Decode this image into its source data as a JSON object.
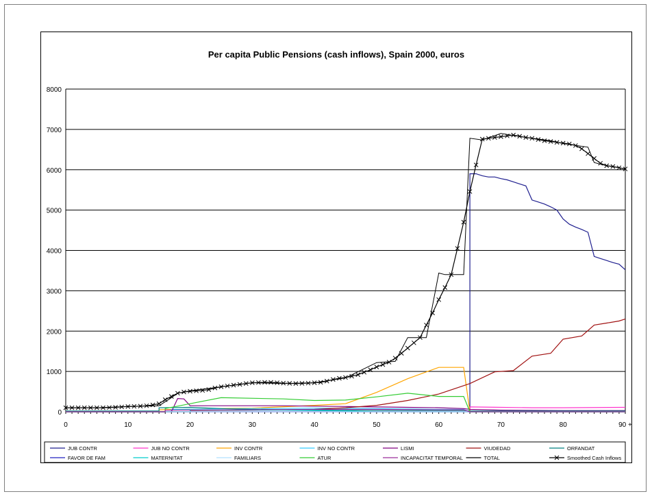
{
  "chart_data": {
    "type": "line",
    "title": "Per capita Public Pensions (cash inflows), Spain 2000, euros",
    "xlabel": "",
    "ylabel": "",
    "ylim": [
      0,
      8000
    ],
    "yticks": [
      0,
      1000,
      2000,
      3000,
      4000,
      5000,
      6000,
      7000,
      8000
    ],
    "xlim": [
      0,
      90
    ],
    "xtick_labels": [
      {
        "x": 0,
        "label": "0"
      },
      {
        "x": 10,
        "label": "10"
      },
      {
        "x": 20,
        "label": "20"
      },
      {
        "x": 30,
        "label": "30"
      },
      {
        "x": 40,
        "label": "40"
      },
      {
        "x": 50,
        "label": "50"
      },
      {
        "x": 60,
        "label": "60"
      },
      {
        "x": 70,
        "label": "70"
      },
      {
        "x": 80,
        "label": "80"
      },
      {
        "x": 90,
        "label": "90 +"
      }
    ],
    "grid": "horizontal",
    "legend_position": "bottom",
    "series": [
      {
        "name": "JUB CONTR",
        "color": "#1f1f8f",
        "step": false,
        "points": [
          [
            0,
            0
          ],
          [
            60,
            0
          ],
          [
            61,
            0
          ],
          [
            63,
            0
          ],
          [
            64,
            0
          ],
          [
            65,
            0
          ],
          [
            65,
            5900
          ],
          [
            66,
            5900
          ],
          [
            67,
            5850
          ],
          [
            68,
            5820
          ],
          [
            69,
            5820
          ],
          [
            70,
            5780
          ],
          [
            71,
            5750
          ],
          [
            72,
            5700
          ],
          [
            73,
            5650
          ],
          [
            74,
            5600
          ],
          [
            75,
            5250
          ],
          [
            76,
            5200
          ],
          [
            77,
            5150
          ],
          [
            78,
            5080
          ],
          [
            79,
            5000
          ],
          [
            80,
            4780
          ],
          [
            81,
            4650
          ],
          [
            82,
            4580
          ],
          [
            83,
            4520
          ],
          [
            84,
            4450
          ],
          [
            85,
            3850
          ],
          [
            86,
            3800
          ],
          [
            87,
            3750
          ],
          [
            88,
            3700
          ],
          [
            89,
            3660
          ],
          [
            90,
            3520
          ]
        ]
      },
      {
        "name": "JUB NO CONTR",
        "color": "#ff33cc",
        "step": false,
        "points": [
          [
            0,
            0
          ],
          [
            64,
            0
          ],
          [
            65,
            0
          ],
          [
            65,
            120
          ],
          [
            70,
            110
          ],
          [
            75,
            100
          ],
          [
            80,
            100
          ],
          [
            90,
            110
          ]
        ]
      },
      {
        "name": "INV CONTR",
        "color": "#ffa500",
        "step": true,
        "points": [
          [
            0,
            0
          ],
          [
            15,
            0
          ],
          [
            15,
            50
          ],
          [
            25,
            80
          ],
          [
            30,
            90
          ],
          [
            40,
            160
          ],
          [
            45,
            200
          ],
          [
            50,
            480
          ],
          [
            55,
            820
          ],
          [
            60,
            1100
          ],
          [
            64,
            1100
          ],
          [
            65,
            0
          ],
          [
            90,
            0
          ]
        ]
      },
      {
        "name": "INV NO CONTR",
        "color": "#33ccff",
        "step": true,
        "points": [
          [
            0,
            0
          ],
          [
            17,
            0
          ],
          [
            17,
            60
          ],
          [
            30,
            80
          ],
          [
            40,
            90
          ],
          [
            50,
            80
          ],
          [
            60,
            60
          ],
          [
            64,
            60
          ],
          [
            65,
            0
          ],
          [
            90,
            0
          ]
        ]
      },
      {
        "name": "LISMI",
        "color": "#800080",
        "step": false,
        "points": [
          [
            0,
            0
          ],
          [
            17,
            0
          ],
          [
            18,
            330
          ],
          [
            19,
            320
          ],
          [
            20,
            150
          ],
          [
            25,
            150
          ],
          [
            30,
            150
          ],
          [
            35,
            150
          ],
          [
            40,
            140
          ],
          [
            45,
            130
          ],
          [
            50,
            120
          ],
          [
            55,
            110
          ],
          [
            60,
            100
          ],
          [
            64,
            80
          ],
          [
            65,
            60
          ],
          [
            70,
            40
          ],
          [
            80,
            30
          ],
          [
            90,
            30
          ]
        ]
      },
      {
        "name": "VIUDEDAD",
        "color": "#a01010",
        "step": true,
        "points": [
          [
            0,
            0
          ],
          [
            20,
            0
          ],
          [
            20,
            30
          ],
          [
            30,
            40
          ],
          [
            40,
            60
          ],
          [
            45,
            100
          ],
          [
            50,
            160
          ],
          [
            55,
            280
          ],
          [
            60,
            440
          ],
          [
            65,
            700
          ],
          [
            69,
            990
          ],
          [
            72,
            1020
          ],
          [
            75,
            1380
          ],
          [
            78,
            1450
          ],
          [
            80,
            1800
          ],
          [
            83,
            1880
          ],
          [
            85,
            2150
          ],
          [
            87,
            2200
          ],
          [
            89,
            2250
          ],
          [
            90,
            2300
          ]
        ]
      },
      {
        "name": "ORFANDAT",
        "color": "#008080",
        "step": true,
        "points": [
          [
            0,
            20
          ],
          [
            15,
            20
          ],
          [
            15,
            100
          ],
          [
            20,
            110
          ],
          [
            25,
            80
          ],
          [
            30,
            60
          ],
          [
            40,
            40
          ],
          [
            50,
            30
          ],
          [
            60,
            30
          ],
          [
            64,
            30
          ],
          [
            65,
            20
          ],
          [
            90,
            20
          ]
        ]
      },
      {
        "name": "FAVOR DE FAM",
        "color": "#2020c0",
        "step": false,
        "points": [
          [
            0,
            0
          ],
          [
            90,
            0
          ]
        ]
      },
      {
        "name": "MATERNITAT",
        "color": "#00cccc",
        "step": true,
        "points": [
          [
            0,
            0
          ],
          [
            20,
            0
          ],
          [
            20,
            40
          ],
          [
            35,
            40
          ],
          [
            45,
            20
          ],
          [
            50,
            0
          ],
          [
            90,
            0
          ]
        ]
      },
      {
        "name": "FAMILIARS",
        "color": "#b0e0ff",
        "step": false,
        "points": [
          [
            0,
            0
          ],
          [
            90,
            0
          ]
        ]
      },
      {
        "name": "ATUR",
        "color": "#33cc33",
        "step": true,
        "points": [
          [
            0,
            0
          ],
          [
            16,
            0
          ],
          [
            16,
            80
          ],
          [
            20,
            200
          ],
          [
            25,
            350
          ],
          [
            35,
            320
          ],
          [
            40,
            280
          ],
          [
            45,
            290
          ],
          [
            50,
            370
          ],
          [
            55,
            460
          ],
          [
            60,
            380
          ],
          [
            64,
            380
          ],
          [
            65,
            0
          ],
          [
            90,
            0
          ]
        ]
      },
      {
        "name": "INCAPACITAT TEMPORAL",
        "color": "#9b2d9b",
        "step": true,
        "points": [
          [
            0,
            0
          ],
          [
            16,
            0
          ],
          [
            16,
            40
          ],
          [
            30,
            50
          ],
          [
            40,
            60
          ],
          [
            50,
            60
          ],
          [
            60,
            50
          ],
          [
            64,
            50
          ],
          [
            65,
            0
          ],
          [
            90,
            0
          ]
        ]
      },
      {
        "name": "TOTAL",
        "color": "#000000",
        "step": true,
        "points": [
          [
            0,
            100
          ],
          [
            5,
            100
          ],
          [
            10,
            130
          ],
          [
            15,
            150
          ],
          [
            17,
            350
          ],
          [
            18,
            460
          ],
          [
            20,
            520
          ],
          [
            25,
            620
          ],
          [
            28,
            680
          ],
          [
            30,
            720
          ],
          [
            35,
            700
          ],
          [
            40,
            720
          ],
          [
            45,
            840
          ],
          [
            50,
            1220
          ],
          [
            53,
            1250
          ],
          [
            55,
            1840
          ],
          [
            58,
            1840
          ],
          [
            60,
            3440
          ],
          [
            61,
            3400
          ],
          [
            64,
            3400
          ],
          [
            65,
            6780
          ],
          [
            67,
            6740
          ],
          [
            70,
            6900
          ],
          [
            72,
            6850
          ],
          [
            75,
            6780
          ],
          [
            78,
            6720
          ],
          [
            80,
            6650
          ],
          [
            84,
            6560
          ],
          [
            85,
            6180
          ],
          [
            87,
            6100
          ],
          [
            89,
            6050
          ],
          [
            90,
            6020
          ]
        ]
      },
      {
        "name": "Smoothed Cash Inflows",
        "color": "#000000",
        "step": false,
        "marker": "x",
        "points": [
          [
            0,
            100
          ],
          [
            1,
            100
          ],
          [
            2,
            100
          ],
          [
            3,
            100
          ],
          [
            4,
            100
          ],
          [
            5,
            100
          ],
          [
            6,
            100
          ],
          [
            7,
            105
          ],
          [
            8,
            110
          ],
          [
            9,
            120
          ],
          [
            10,
            130
          ],
          [
            11,
            135
          ],
          [
            12,
            140
          ],
          [
            13,
            150
          ],
          [
            14,
            170
          ],
          [
            15,
            200
          ],
          [
            16,
            300
          ],
          [
            17,
            380
          ],
          [
            18,
            460
          ],
          [
            19,
            490
          ],
          [
            20,
            510
          ],
          [
            21,
            520
          ],
          [
            22,
            530
          ],
          [
            23,
            550
          ],
          [
            24,
            590
          ],
          [
            25,
            620
          ],
          [
            26,
            640
          ],
          [
            27,
            660
          ],
          [
            28,
            680
          ],
          [
            29,
            700
          ],
          [
            30,
            720
          ],
          [
            31,
            725
          ],
          [
            32,
            730
          ],
          [
            33,
            730
          ],
          [
            34,
            720
          ],
          [
            35,
            710
          ],
          [
            36,
            705
          ],
          [
            37,
            700
          ],
          [
            38,
            705
          ],
          [
            39,
            710
          ],
          [
            40,
            720
          ],
          [
            41,
            730
          ],
          [
            42,
            760
          ],
          [
            43,
            800
          ],
          [
            44,
            830
          ],
          [
            45,
            850
          ],
          [
            46,
            880
          ],
          [
            47,
            920
          ],
          [
            48,
            980
          ],
          [
            49,
            1040
          ],
          [
            50,
            1110
          ],
          [
            51,
            1170
          ],
          [
            52,
            1230
          ],
          [
            53,
            1330
          ],
          [
            54,
            1450
          ],
          [
            55,
            1580
          ],
          [
            56,
            1710
          ],
          [
            57,
            1840
          ],
          [
            58,
            2150
          ],
          [
            59,
            2450
          ],
          [
            60,
            2780
          ],
          [
            61,
            3080
          ],
          [
            62,
            3400
          ],
          [
            63,
            4050
          ],
          [
            64,
            4700
          ],
          [
            65,
            5460
          ],
          [
            66,
            6120
          ],
          [
            67,
            6760
          ],
          [
            68,
            6780
          ],
          [
            69,
            6800
          ],
          [
            70,
            6820
          ],
          [
            71,
            6840
          ],
          [
            72,
            6860
          ],
          [
            73,
            6830
          ],
          [
            74,
            6800
          ],
          [
            75,
            6780
          ],
          [
            76,
            6750
          ],
          [
            77,
            6720
          ],
          [
            78,
            6700
          ],
          [
            79,
            6680
          ],
          [
            80,
            6660
          ],
          [
            81,
            6640
          ],
          [
            82,
            6600
          ],
          [
            83,
            6520
          ],
          [
            84,
            6400
          ],
          [
            85,
            6280
          ],
          [
            86,
            6160
          ],
          [
            87,
            6100
          ],
          [
            88,
            6080
          ],
          [
            89,
            6050
          ],
          [
            90,
            6020
          ]
        ]
      }
    ]
  }
}
